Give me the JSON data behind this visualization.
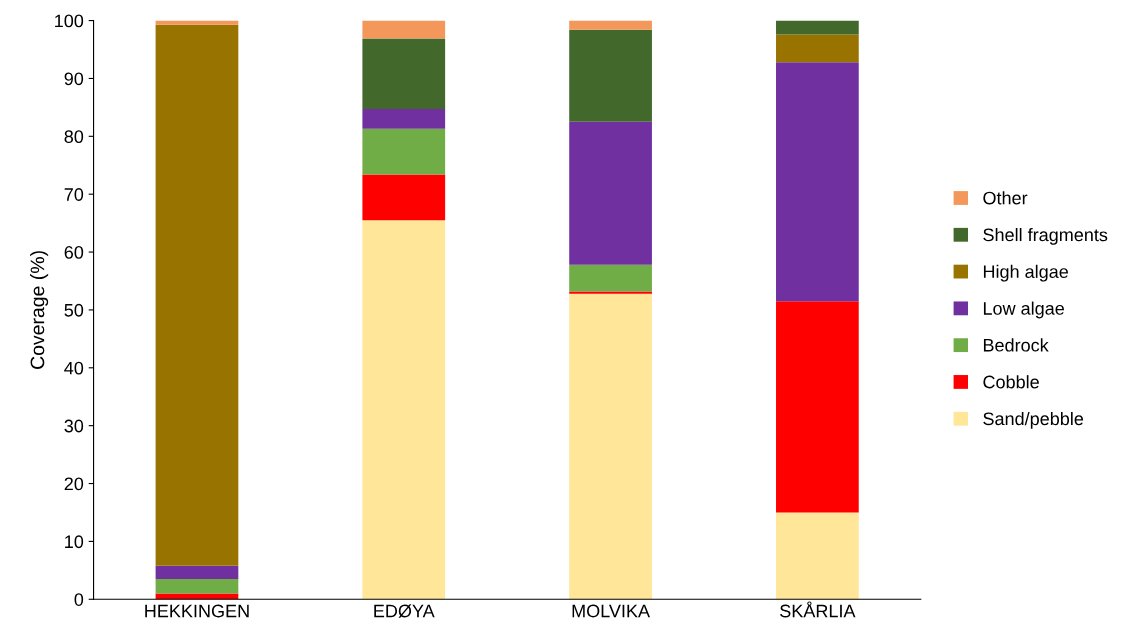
{
  "chart_data": {
    "type": "bar",
    "stacked": true,
    "ylabel": "Coverage (%)",
    "categories": [
      "HEKKINGEN",
      "EDØYA",
      "MOLVIKA",
      "SKÅRLIA"
    ],
    "ylim": [
      0,
      100
    ],
    "yticks": [
      0,
      10,
      20,
      30,
      40,
      50,
      60,
      70,
      80,
      90,
      100
    ],
    "grid": false,
    "legend": "right",
    "series": [
      {
        "name": "Sand/pebble",
        "color": "#ffe699",
        "values": [
          0,
          65.5,
          52.8,
          15.0
        ]
      },
      {
        "name": "Cobble",
        "color": "#ff0000",
        "values": [
          1.0,
          7.9,
          0.4,
          36.5
        ]
      },
      {
        "name": "Bedrock",
        "color": "#70ad47",
        "values": [
          2.5,
          7.9,
          4.6,
          0
        ]
      },
      {
        "name": "Low algae",
        "color": "#7030a0",
        "values": [
          2.3,
          3.4,
          24.7,
          41.3
        ]
      },
      {
        "name": "High algae",
        "color": "#997300",
        "values": [
          93.5,
          0,
          0,
          4.8
        ]
      },
      {
        "name": "Shell fragments",
        "color": "#43682b",
        "values": [
          0,
          12.2,
          15.9,
          2.4
        ]
      },
      {
        "name": "Other",
        "color": "#f4975b",
        "values": [
          0.7,
          3.1,
          1.6,
          0
        ]
      }
    ]
  }
}
